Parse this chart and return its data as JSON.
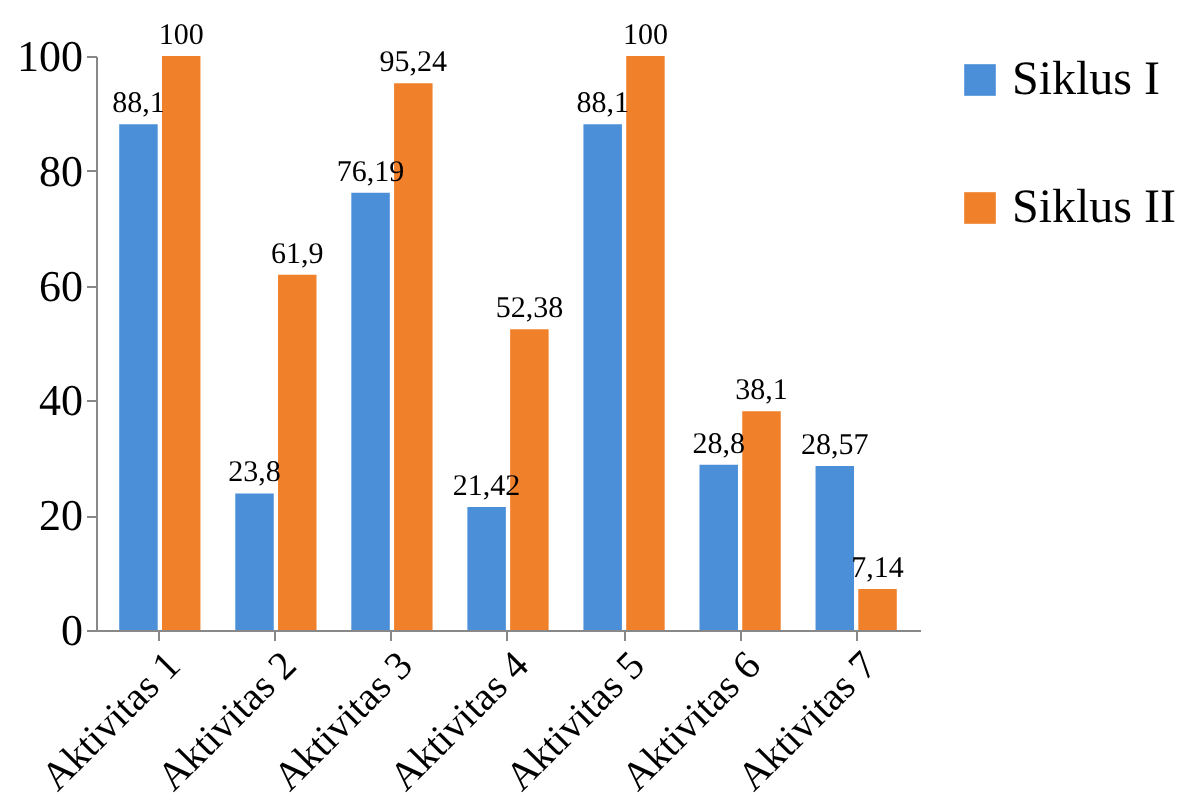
{
  "chart_data": {
    "type": "bar",
    "categories": [
      "Aktivitas 1",
      "Aktivitas 2",
      "Aktivitas 3",
      "Aktivitas 4",
      "Aktivitas 5",
      "Aktivitas 6",
      "Aktivitas 7"
    ],
    "series": [
      {
        "name": "Siklus I",
        "color": "#4a8fd8",
        "values": [
          88.1,
          23.8,
          76.19,
          21.42,
          88.1,
          28.8,
          28.57
        ],
        "value_labels": [
          "88,1",
          "23,8",
          "76,19",
          "21,42",
          "88,1",
          "28,8",
          "28,57"
        ]
      },
      {
        "name": "Siklus II",
        "color": "#f0802a",
        "values": [
          100,
          61.9,
          95.24,
          52.38,
          100,
          38.1,
          7.14
        ],
        "value_labels": [
          "100",
          "61,9",
          "95,24",
          "52,38",
          "100",
          "38,1",
          "7,14"
        ]
      }
    ],
    "ylim": [
      0,
      100
    ],
    "yticks": [
      0,
      20,
      40,
      60,
      80,
      100
    ],
    "grid": false,
    "legend": "top right"
  }
}
